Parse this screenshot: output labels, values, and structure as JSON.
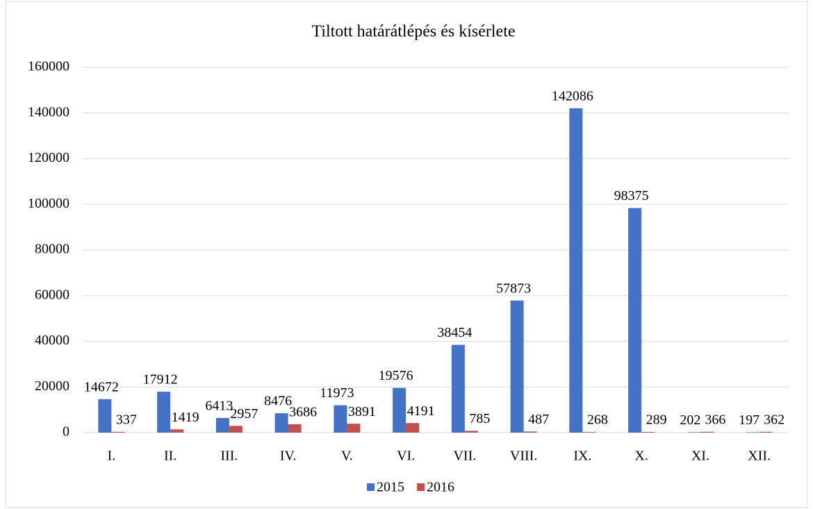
{
  "chart_data": {
    "type": "bar",
    "title": "Tiltott határátlépés és kísérlete",
    "categories": [
      "I.",
      "II.",
      "III.",
      "IV.",
      "V.",
      "VI.",
      "VII.",
      "VIII.",
      "IX.",
      "X.",
      "XI.",
      "XII."
    ],
    "series": [
      {
        "name": "2015",
        "color": "#4472c4",
        "values": [
          14672,
          17912,
          6413,
          8476,
          11973,
          19576,
          38454,
          57873,
          142086,
          98375,
          202,
          197
        ]
      },
      {
        "name": "2016",
        "color": "#c0504d",
        "values": [
          337,
          1419,
          2957,
          3686,
          3891,
          4191,
          785,
          487,
          268,
          289,
          366,
          362
        ]
      }
    ],
    "ylim": [
      0,
      160000
    ],
    "yticks": [
      0,
      20000,
      40000,
      60000,
      80000,
      100000,
      120000,
      140000,
      160000
    ],
    "grid": true,
    "legend": "bottom"
  }
}
